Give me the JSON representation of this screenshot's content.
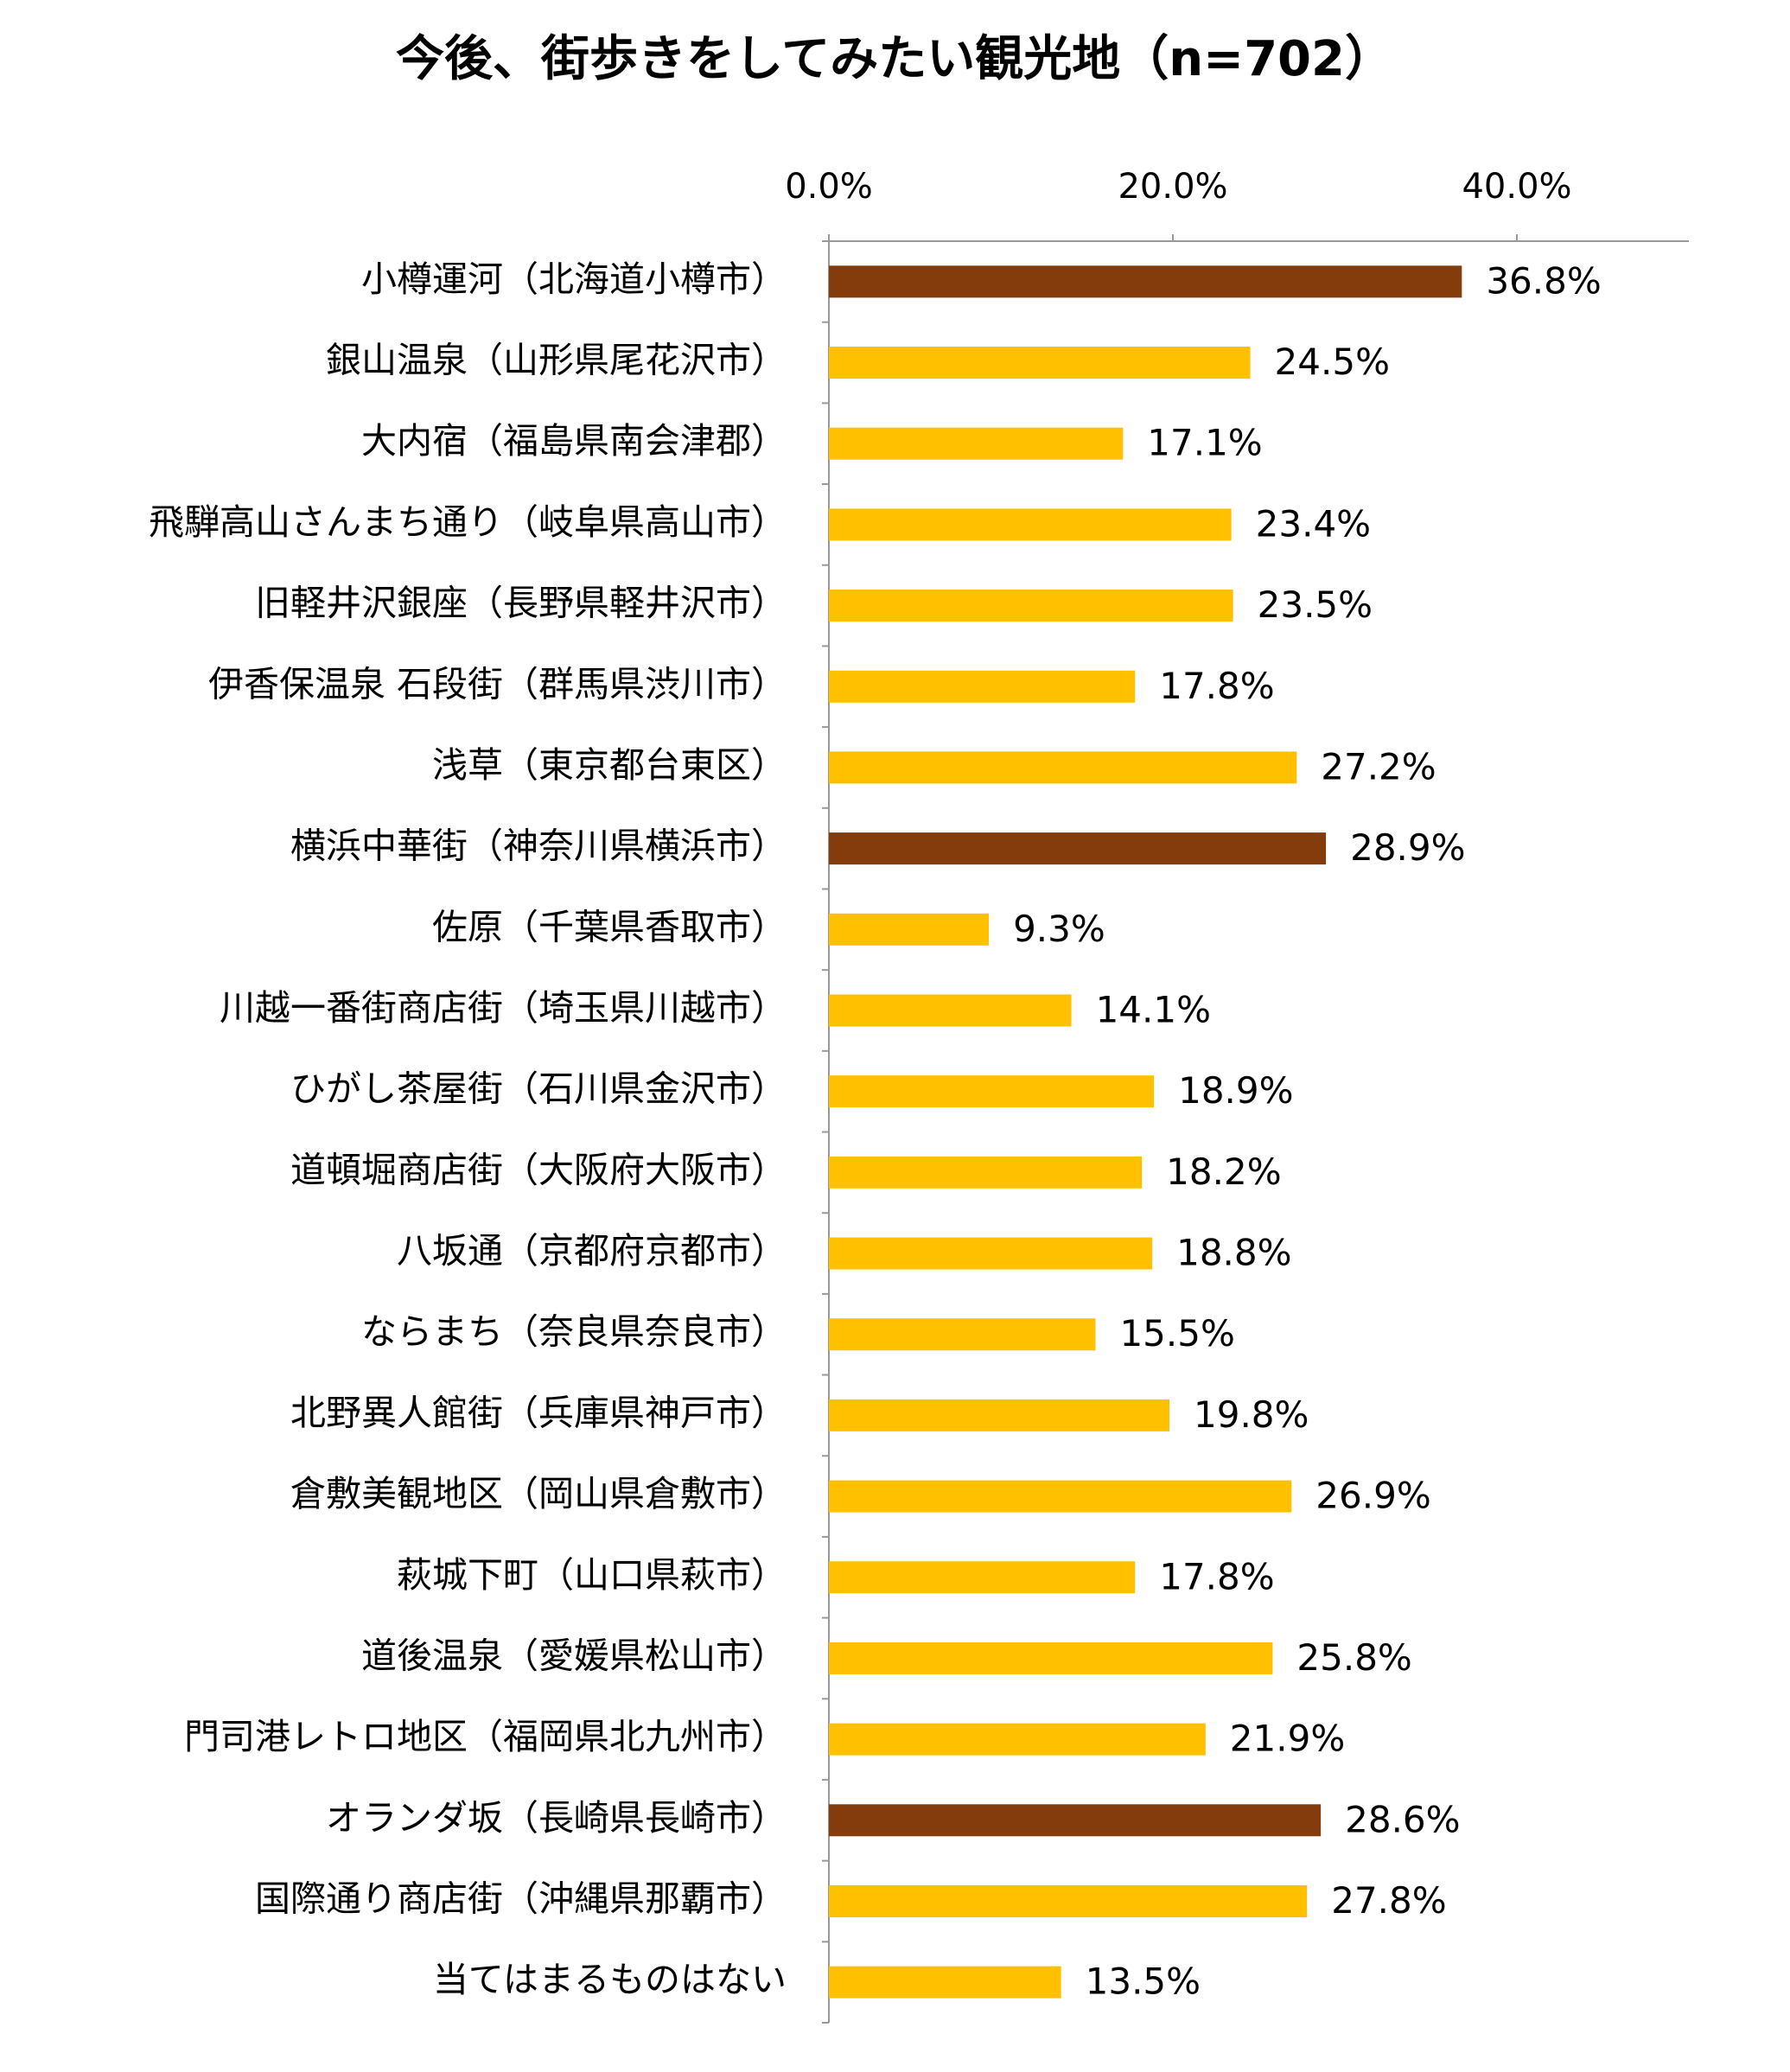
{
  "chart_data": {
    "type": "barh",
    "title": "今後、街歩きをしてみたい観光地（n=702）",
    "categories": [
      "小樽運河（北海道小樽市）",
      "銀山温泉（山形県尾花沢市）",
      "大内宿（福島県南会津郡）",
      "飛騨高山さんまち通り（岐阜県高山市）",
      "旧軽井沢銀座（長野県軽井沢市）",
      "伊香保温泉 石段街（群馬県渋川市）",
      "浅草（東京都台東区）",
      "横浜中華街（神奈川県横浜市）",
      "佐原（千葉県香取市）",
      "川越一番街商店街（埼玉県川越市）",
      "ひがし茶屋街（石川県金沢市）",
      "道頓堀商店街（大阪府大阪市）",
      "八坂通（京都府京都市）",
      "ならまち（奈良県奈良市）",
      "北野異人館街（兵庫県神戸市）",
      "倉敷美観地区（岡山県倉敷市）",
      "萩城下町（山口県萩市）",
      "道後温泉（愛媛県松山市）",
      "門司港レトロ地区（福岡県北九州市）",
      "オランダ坂（長崎県長崎市）",
      "国際通り商店街（沖縄県那覇市）",
      "当てはまるものはない"
    ],
    "values": [
      36.8,
      24.5,
      17.1,
      23.4,
      23.5,
      17.8,
      27.2,
      28.9,
      9.3,
      14.1,
      18.9,
      18.2,
      18.8,
      15.5,
      19.8,
      26.9,
      17.8,
      25.8,
      21.9,
      28.6,
      27.8,
      13.5
    ],
    "value_labels": [
      "36.8%",
      "24.5%",
      "17.1%",
      "23.4%",
      "23.5%",
      "17.8%",
      "27.2%",
      "28.9%",
      "9.3%",
      "14.1%",
      "18.9%",
      "18.2%",
      "18.8%",
      "15.5%",
      "19.8%",
      "26.9%",
      "17.8%",
      "25.8%",
      "21.9%",
      "28.6%",
      "27.8%",
      "13.5%"
    ],
    "colors": [
      "#843C0C",
      "#FFC000",
      "#FFC000",
      "#FFC000",
      "#FFC000",
      "#FFC000",
      "#FFC000",
      "#843C0C",
      "#FFC000",
      "#FFC000",
      "#FFC000",
      "#FFC000",
      "#FFC000",
      "#FFC000",
      "#FFC000",
      "#FFC000",
      "#FFC000",
      "#FFC000",
      "#FFC000",
      "#843C0C",
      "#FFC000",
      "#FFC000"
    ],
    "xlim": [
      0,
      50
    ],
    "xticks": [
      {
        "value": 0,
        "label": "0.0%"
      },
      {
        "value": 20,
        "label": "20.0%"
      },
      {
        "value": 40,
        "label": "40.0%"
      }
    ]
  }
}
